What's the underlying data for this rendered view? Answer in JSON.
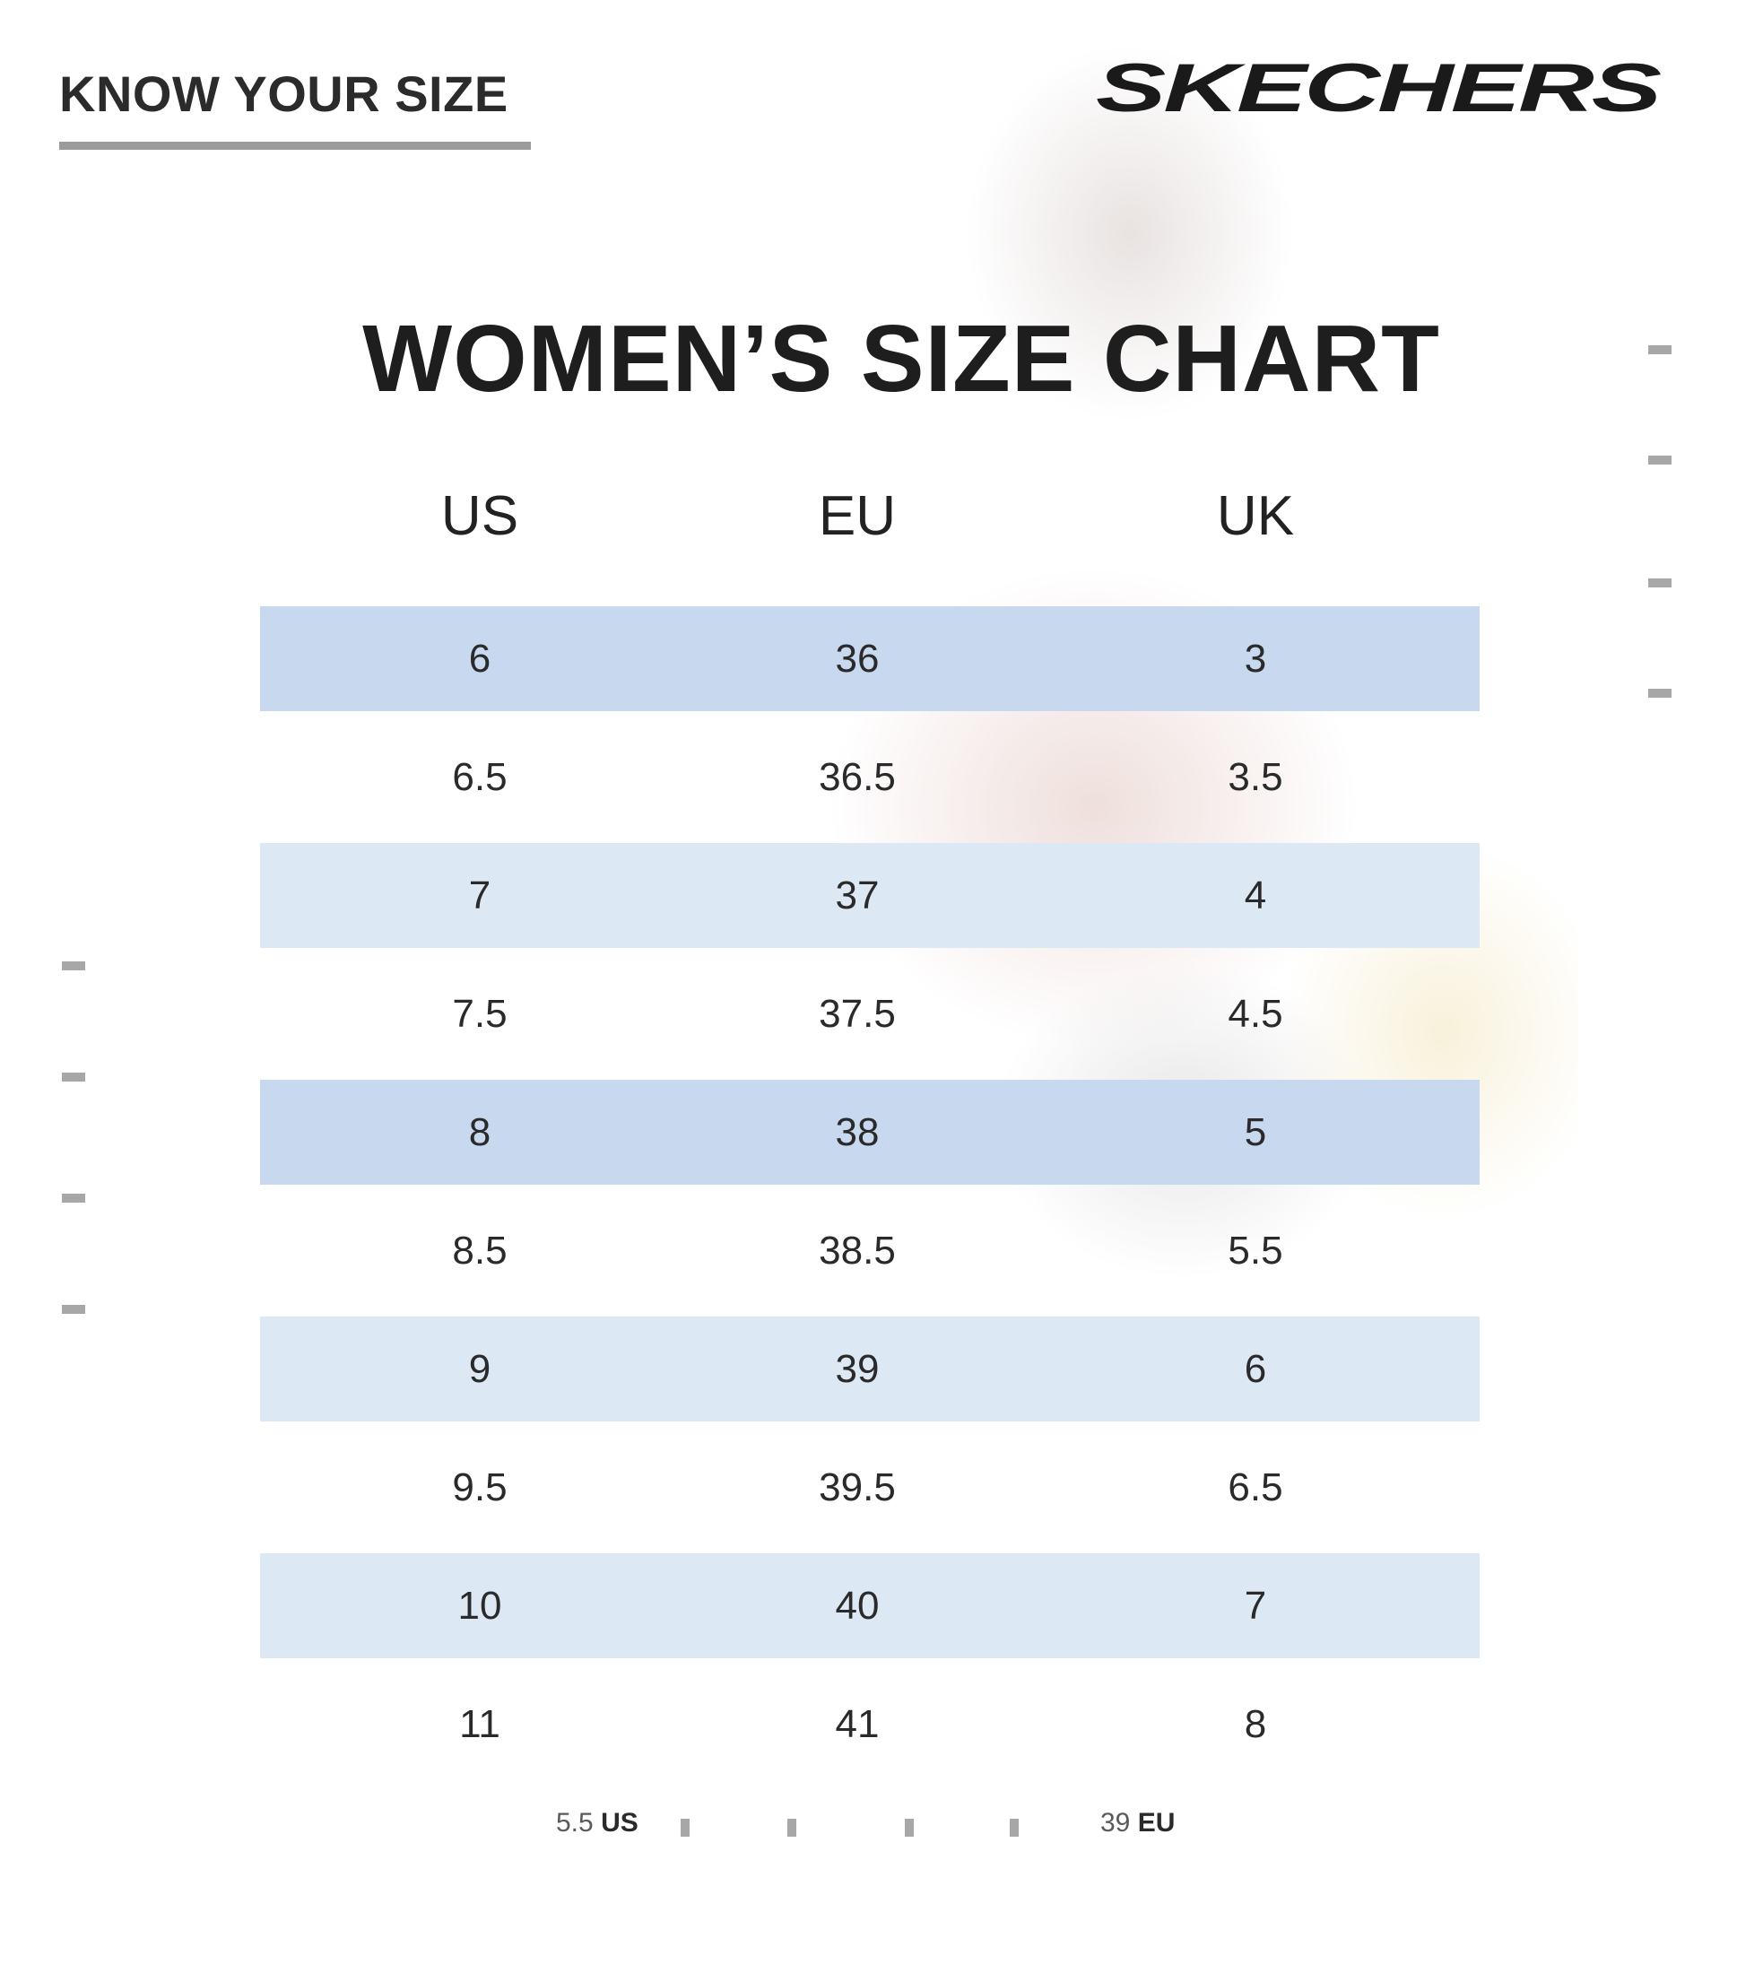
{
  "header": {
    "title": "KNOW YOUR SIZE",
    "brand": "SKECHERS"
  },
  "chart": {
    "title": "WOMEN’S SIZE CHART",
    "columns": [
      "US",
      "EU",
      "UK"
    ],
    "rows": [
      {
        "us": "6",
        "eu": "36",
        "uk": "3"
      },
      {
        "us": "6.5",
        "eu": "36.5",
        "uk": "3.5"
      },
      {
        "us": "7",
        "eu": "37",
        "uk": "4"
      },
      {
        "us": "7.5",
        "eu": "37.5",
        "uk": "4.5"
      },
      {
        "us": "8",
        "eu": "38",
        "uk": "5"
      },
      {
        "us": "8.5",
        "eu": "38.5",
        "uk": "5.5"
      },
      {
        "us": "9",
        "eu": "39",
        "uk": "6"
      },
      {
        "us": "9.5",
        "eu": "39.5",
        "uk": "6.5"
      },
      {
        "us": "10",
        "eu": "40",
        "uk": "7"
      },
      {
        "us": "11",
        "eu": "41",
        "uk": "8"
      }
    ]
  },
  "footer": {
    "left_value": "5.5",
    "left_unit": "US",
    "right_value": "39",
    "right_unit": "EU"
  },
  "colors": {
    "row_strong": "#c8d9ef",
    "row_light": "#dde8f5",
    "tick": "#a7a7a7"
  }
}
